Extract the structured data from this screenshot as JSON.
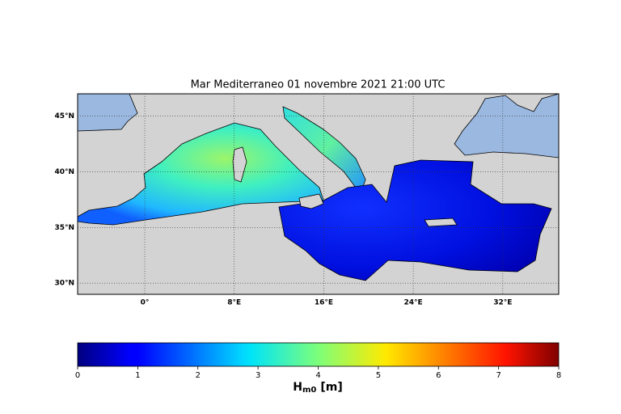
{
  "chart_data": {
    "type": "map",
    "title": "Mar Mediterraneo 01 novembre 2021  21:00 UTC",
    "xlim": [
      -6,
      37
    ],
    "ylim": [
      29,
      47
    ],
    "xticks": [
      {
        "value": 0,
        "label": "0°"
      },
      {
        "value": 8,
        "label": "8°E"
      },
      {
        "value": 16,
        "label": "16°E"
      },
      {
        "value": 24,
        "label": "24°E"
      },
      {
        "value": 32,
        "label": "32°E"
      }
    ],
    "yticks": [
      {
        "value": 30,
        "label": "30°N"
      },
      {
        "value": 35,
        "label": "35°N"
      },
      {
        "value": 40,
        "label": "40°N"
      },
      {
        "value": 45,
        "label": "45°N"
      }
    ],
    "grid": true,
    "colormap": "jet",
    "colorbar": {
      "lim": [
        0,
        8
      ],
      "ticks": [
        0,
        1,
        2,
        3,
        4,
        5,
        6,
        7,
        8
      ],
      "label": "H",
      "label_subscript": "m0",
      "label_unit": "[m]"
    }
  }
}
